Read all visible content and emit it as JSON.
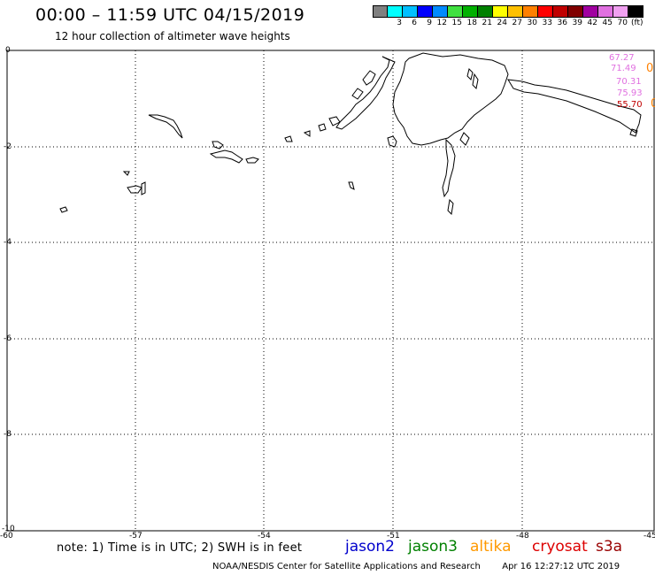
{
  "header": {
    "title": "00:00 – 11:59 UTC 04/15/2019",
    "subtitle": "12 hour collection of altimeter wave heights"
  },
  "colorbar": {
    "unit": "(ft)",
    "swatches": [
      {
        "color": "#808080",
        "label": ""
      },
      {
        "color": "#00ffff",
        "label": "3"
      },
      {
        "color": "#00bfff",
        "label": "6"
      },
      {
        "color": "#0000ff",
        "label": "9"
      },
      {
        "color": "#008aff",
        "label": "12"
      },
      {
        "color": "#40e040",
        "label": "15"
      },
      {
        "color": "#00b000",
        "label": "18"
      },
      {
        "color": "#008000",
        "label": "21"
      },
      {
        "color": "#ffff00",
        "label": "24"
      },
      {
        "color": "#ffc000",
        "label": "27"
      },
      {
        "color": "#ff8000",
        "label": "30"
      },
      {
        "color": "#ff0000",
        "label": "33"
      },
      {
        "color": "#c00000",
        "label": "36"
      },
      {
        "color": "#800000",
        "label": "39"
      },
      {
        "color": "#a000a0",
        "label": "42"
      },
      {
        "color": "#e070e0",
        "label": "45"
      },
      {
        "color": "#f0a0f0",
        "label": "70"
      },
      {
        "color": "#000000",
        "label": ""
      }
    ]
  },
  "axes": {
    "y_ticks": [
      "0",
      "-2",
      "-4",
      "-6",
      "-8",
      "-10"
    ],
    "x_ticks": [
      "-60",
      "-57",
      "-54",
      "-51",
      "-48",
      "-45"
    ]
  },
  "swh_values": [
    {
      "text": "67.27",
      "color": "#e070e0"
    },
    {
      "text": "71.49",
      "color": "#e070e0"
    },
    {
      "text": "0",
      "color": "#ff8000"
    },
    {
      "text": "70.31",
      "color": "#e070e0"
    },
    {
      "text": "75.93",
      "color": "#e070e0"
    },
    {
      "text": "55.70",
      "color": "#c00000"
    },
    {
      "text": "0",
      "color": "#ff8000"
    }
  ],
  "footer": {
    "note": "note: 1) Time is in UTC; 2) SWH is in feet",
    "satellites": [
      {
        "name": "jason2",
        "color": "#0000cc"
      },
      {
        "name": "jason3",
        "color": "#008000"
      },
      {
        "name": "altika",
        "color": "#ff9900"
      },
      {
        "name": "cryosat",
        "color": "#dd0000"
      },
      {
        "name": "s3a",
        "color": "#990000"
      }
    ],
    "credit": "NOAA/NESDIS Center for Satellite Applications and Research",
    "timestamp": "Apr 16 12:27:12 UTC 2019"
  }
}
